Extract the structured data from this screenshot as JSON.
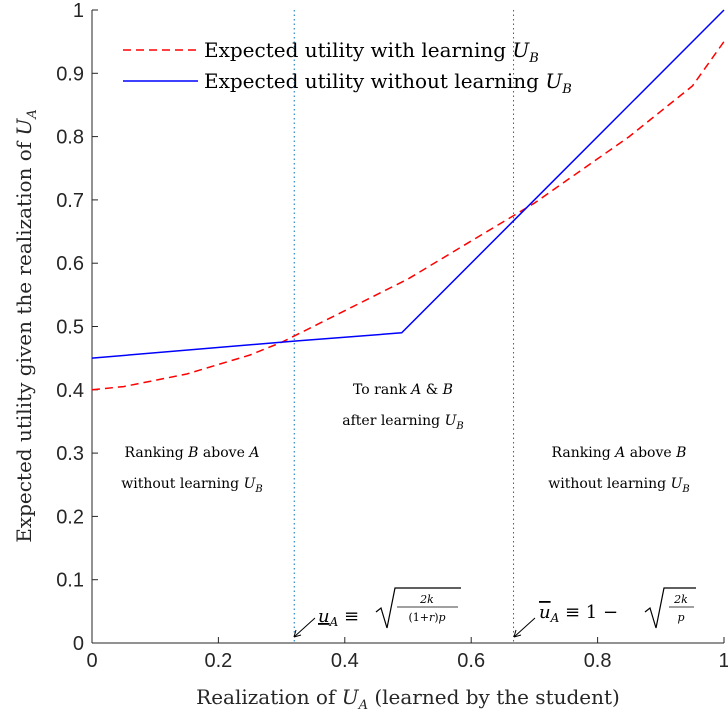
{
  "chart_data": {
    "type": "line",
    "xlabel": "Realization of U_A (learned by the student)",
    "ylabel": "Expected utility given the realization of U_A",
    "xlim": [
      0,
      1
    ],
    "ylim": [
      0,
      1
    ],
    "xticks": [
      "0",
      "0.2",
      "0.4",
      "0.6",
      "0.8",
      "1"
    ],
    "yticks": [
      "0",
      "0.1",
      "0.2",
      "0.3",
      "0.4",
      "0.5",
      "0.6",
      "0.7",
      "0.8",
      "0.9",
      "1"
    ],
    "grid": false,
    "legend_position": "top-left",
    "series": [
      {
        "name": "Expected utility with learning U_B",
        "color": "#ff0000",
        "style": "dashed",
        "x": [
          0,
          0.05,
          0.1,
          0.15,
          0.2,
          0.25,
          0.3,
          0.35,
          0.4,
          0.45,
          0.5,
          0.55,
          0.6,
          0.65,
          0.7,
          0.75,
          0.8,
          0.85,
          0.9,
          0.95,
          1.0
        ],
        "y": [
          0.4,
          0.405,
          0.415,
          0.425,
          0.44,
          0.455,
          0.475,
          0.5,
          0.525,
          0.55,
          0.575,
          0.605,
          0.635,
          0.665,
          0.695,
          0.73,
          0.765,
          0.8,
          0.84,
          0.88,
          0.95
        ]
      },
      {
        "name": "Expected utility without learning U_B",
        "color": "#0000ff",
        "style": "solid",
        "x": [
          0,
          0.32,
          0.49,
          0.667,
          1.0
        ],
        "y": [
          0.45,
          0.477,
          0.49,
          0.667,
          1.0
        ]
      }
    ],
    "vlines": [
      {
        "x": 0.32,
        "color": "#0072bd",
        "style": "dotted"
      },
      {
        "x": 0.667,
        "color": "#0072bd",
        "style": "dotted"
      }
    ],
    "annotations": [
      {
        "id": "left",
        "lines": [
          "Ranking B above A",
          "without learning U_B"
        ]
      },
      {
        "id": "middle",
        "lines": [
          "To rank A & B",
          "after learning U_B"
        ]
      },
      {
        "id": "right",
        "lines": [
          "Ranking A above B",
          "without learning U_B"
        ]
      },
      {
        "id": "lower_threshold",
        "text": "u_A ≡ √(2k/((1+r)p))"
      },
      {
        "id": "upper_threshold",
        "text": "u_A ≡ 1 − √(2k/p)"
      }
    ]
  }
}
